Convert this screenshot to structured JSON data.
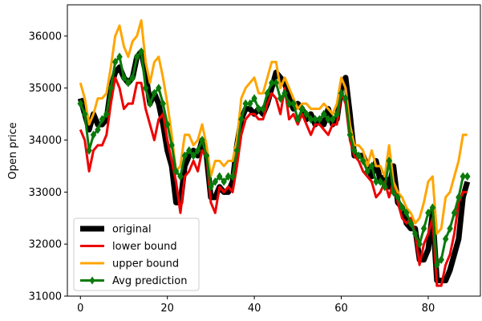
{
  "chart_data": {
    "type": "line",
    "title": "",
    "xlabel": "",
    "ylabel": "Open price",
    "xlim": [
      -3,
      92
    ],
    "ylim": [
      31000,
      36600
    ],
    "xticks": [
      0,
      20,
      40,
      60,
      80
    ],
    "yticks": [
      31000,
      32000,
      33000,
      34000,
      35000,
      36000
    ],
    "grid": false,
    "legend_position": "lower-left",
    "series": [
      {
        "name": "original",
        "color": "#000000",
        "marker": "none",
        "x": [
          0,
          2,
          3,
          4,
          5,
          6,
          7,
          8,
          9,
          10,
          11,
          12,
          13,
          14,
          15,
          16,
          17,
          18,
          19,
          20,
          21,
          22,
          23,
          24,
          25,
          26,
          27,
          28,
          29,
          30,
          31,
          32,
          33,
          34,
          35,
          36,
          37,
          38,
          39,
          40,
          41,
          42,
          43,
          44,
          45,
          46,
          47,
          48,
          49,
          50,
          51,
          52,
          53,
          54,
          55,
          56,
          57,
          58,
          59,
          60,
          61,
          62,
          63,
          64,
          65,
          66,
          67,
          68,
          69,
          70,
          71,
          72,
          73,
          74,
          75,
          76,
          77,
          78,
          79,
          80,
          81,
          82,
          83,
          84,
          85,
          86,
          87,
          88,
          89
        ],
        "values": [
          34800,
          34200,
          34500,
          34300,
          34300,
          34400,
          35000,
          35300,
          35400,
          35200,
          35100,
          35200,
          35600,
          35700,
          35300,
          34700,
          34900,
          34700,
          34300,
          33800,
          33500,
          32800,
          32800,
          33500,
          33700,
          33800,
          33700,
          34000,
          33700,
          32900,
          32900,
          33100,
          33000,
          33000,
          33200,
          33900,
          34400,
          34600,
          34600,
          34500,
          34600,
          34500,
          34700,
          35000,
          35300,
          35200,
          35100,
          34800,
          34600,
          34700,
          34600,
          34400,
          34500,
          34300,
          34400,
          34300,
          34600,
          34300,
          34400,
          35000,
          35200,
          34500,
          33700,
          33700,
          33700,
          33500,
          33300,
          33600,
          33200,
          33300,
          33100,
          33500,
          32800,
          32700,
          32400,
          32300,
          32300,
          31700,
          31700,
          31900,
          32600,
          31300,
          31300,
          31300,
          31500,
          31800,
          32100,
          32900,
          33200
        ]
      },
      {
        "name": "lower bound",
        "color": "#ee0000",
        "marker": "none",
        "x": [
          0,
          1,
          2,
          3,
          4,
          5,
          6,
          7,
          8,
          9,
          10,
          11,
          12,
          13,
          14,
          15,
          16,
          17,
          18,
          19,
          20,
          21,
          22,
          23,
          24,
          25,
          26,
          27,
          28,
          29,
          30,
          31,
          32,
          33,
          34,
          35,
          36,
          37,
          38,
          39,
          40,
          41,
          42,
          43,
          44,
          45,
          46,
          47,
          48,
          49,
          50,
          51,
          52,
          53,
          54,
          55,
          56,
          57,
          58,
          59,
          60,
          61,
          62,
          63,
          64,
          65,
          66,
          67,
          68,
          69,
          70,
          71,
          72,
          73,
          74,
          75,
          76,
          77,
          78,
          79,
          80,
          81,
          82,
          83,
          84,
          85,
          86,
          87,
          88,
          89
        ],
        "values": [
          34200,
          34000,
          33400,
          33800,
          33900,
          33900,
          34100,
          34700,
          35200,
          35000,
          34600,
          34700,
          34700,
          35100,
          35100,
          34600,
          34300,
          34000,
          34400,
          34500,
          34000,
          33600,
          33200,
          32600,
          33300,
          33400,
          33600,
          33400,
          33800,
          33700,
          32800,
          32600,
          33100,
          33000,
          33100,
          33000,
          33500,
          34100,
          34400,
          34500,
          34500,
          34400,
          34400,
          34700,
          34900,
          34800,
          34500,
          35000,
          34400,
          34500,
          34300,
          34500,
          34300,
          34100,
          34300,
          34300,
          34200,
          34100,
          34300,
          34300,
          34900,
          34700,
          34000,
          33700,
          33600,
          33400,
          33300,
          33200,
          32900,
          33000,
          33200,
          32900,
          33200,
          32800,
          32500,
          32400,
          32500,
          32200,
          31600,
          32000,
          32200,
          32500,
          31200,
          31200,
          31600,
          31800,
          32200,
          32800,
          33000,
          33000
        ]
      },
      {
        "name": "upper bound",
        "color": "#ffa500",
        "marker": "none",
        "x": [
          0,
          1,
          2,
          3,
          4,
          5,
          6,
          7,
          8,
          9,
          10,
          11,
          12,
          13,
          14,
          15,
          16,
          17,
          18,
          19,
          20,
          21,
          22,
          23,
          24,
          25,
          26,
          27,
          28,
          29,
          30,
          31,
          32,
          33,
          34,
          35,
          36,
          37,
          38,
          39,
          40,
          41,
          42,
          43,
          44,
          45,
          46,
          47,
          48,
          49,
          50,
          51,
          52,
          53,
          54,
          55,
          56,
          57,
          58,
          59,
          60,
          61,
          62,
          63,
          64,
          65,
          66,
          67,
          68,
          69,
          70,
          71,
          72,
          73,
          74,
          75,
          76,
          77,
          78,
          79,
          80,
          81,
          82,
          83,
          84,
          85,
          86,
          87,
          88,
          89
        ],
        "values": [
          35100,
          34800,
          34300,
          34500,
          34800,
          34800,
          34900,
          35400,
          36000,
          36200,
          35800,
          35600,
          35900,
          36000,
          36300,
          35500,
          35100,
          35500,
          35600,
          35200,
          34700,
          34100,
          33400,
          33500,
          34100,
          34100,
          33900,
          34000,
          34300,
          33900,
          33300,
          33600,
          33600,
          33500,
          33600,
          33600,
          34000,
          34800,
          35000,
          35100,
          35200,
          34900,
          34900,
          35200,
          35500,
          35500,
          35000,
          35200,
          35000,
          34800,
          34600,
          34700,
          34700,
          34600,
          34600,
          34600,
          34700,
          34600,
          34500,
          34700,
          35200,
          35000,
          34300,
          33900,
          33900,
          33800,
          33500,
          33800,
          33500,
          33500,
          33300,
          33900,
          33200,
          33000,
          32900,
          32700,
          32600,
          32400,
          32500,
          32800,
          33200,
          33300,
          32200,
          32300,
          32900,
          33000,
          33300,
          33600,
          34100,
          34100
        ]
      },
      {
        "name": "Avg prediction",
        "color": "#0a7a0a",
        "marker": "diamond",
        "x": [
          0,
          1,
          2,
          3,
          4,
          5,
          6,
          7,
          8,
          9,
          10,
          11,
          12,
          13,
          14,
          15,
          16,
          17,
          18,
          19,
          20,
          21,
          22,
          23,
          24,
          25,
          26,
          27,
          28,
          29,
          30,
          31,
          32,
          33,
          34,
          35,
          36,
          37,
          38,
          39,
          40,
          41,
          42,
          43,
          44,
          45,
          46,
          47,
          48,
          49,
          50,
          51,
          52,
          53,
          54,
          55,
          56,
          57,
          58,
          59,
          60,
          61,
          62,
          63,
          64,
          65,
          66,
          67,
          68,
          69,
          70,
          71,
          72,
          73,
          74,
          75,
          76,
          77,
          78,
          79,
          80,
          81,
          82,
          83,
          84,
          85,
          86,
          87,
          88,
          89
        ],
        "values": [
          34700,
          34500,
          33800,
          34100,
          34200,
          34400,
          34500,
          35000,
          35500,
          35600,
          35200,
          35100,
          35200,
          35600,
          35700,
          35000,
          34700,
          34900,
          35000,
          34700,
          34300,
          33900,
          33400,
          33300,
          33700,
          33800,
          33700,
          33800,
          34000,
          33700,
          33100,
          33200,
          33300,
          33200,
          33300,
          33300,
          33800,
          34400,
          34700,
          34700,
          34800,
          34600,
          34600,
          34900,
          35100,
          35100,
          34800,
          34900,
          34700,
          34700,
          34400,
          34600,
          34500,
          34400,
          34400,
          34400,
          34500,
          34400,
          34400,
          34500,
          34900,
          34800,
          34100,
          33800,
          33700,
          33600,
          33400,
          33500,
          33200,
          33200,
          33100,
          33600,
          33000,
          32900,
          32700,
          32600,
          32400,
          32200,
          32000,
          32300,
          32600,
          32700,
          31600,
          31700,
          32100,
          32300,
          32600,
          32900,
          33300,
          33300
        ]
      }
    ]
  }
}
